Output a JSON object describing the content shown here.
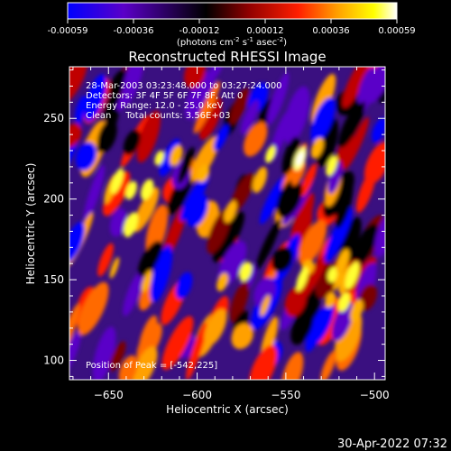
{
  "chart_data": {
    "type": "heatmap",
    "title": "Reconstructed RHESSI Image",
    "xlabel": "Heliocentric X (arcsec)",
    "ylabel": "Heliocentric Y (arcsec)",
    "xlim": [
      -672,
      -494
    ],
    "ylim": [
      88,
      282
    ],
    "x_ticks": [
      -650,
      -600,
      -550,
      -500
    ],
    "y_ticks": [
      100,
      150,
      200,
      250
    ],
    "colorbar": {
      "range": [
        -0.00059,
        0.00059
      ],
      "ticks": [
        "-0.00059",
        "-0.00036",
        "-0.00012",
        "0.00012",
        "0.00036",
        "0.00059"
      ],
      "unit_label": "(photons cm",
      "unit_sup1": "-2",
      "unit_mid1": " s",
      "unit_sup2": "-1",
      "unit_mid2": " asec",
      "unit_sup3": "-2",
      "unit_end": ")"
    },
    "annotations": [
      "28-Mar-2003 03:23:48.000 to 03:27:24.000",
      "Detectors: 3F 4F 5F 6F 7F 8F, Att 0",
      "Energy Range: 12.0 - 25.0 keV",
      "Clean     Total counts: 3.56E+03"
    ],
    "peak_label": "Position of Peak = [-542,225]",
    "peak_position": [
      -542,
      225
    ],
    "colors": {
      "colormap": [
        "#0000ff",
        "#5a00c8",
        "#000000",
        "#900000",
        "#ff1e00",
        "#ffa000",
        "#ffff00",
        "#ffffff"
      ]
    }
  },
  "footer_timestamp": "30-Apr-2022 07:32"
}
